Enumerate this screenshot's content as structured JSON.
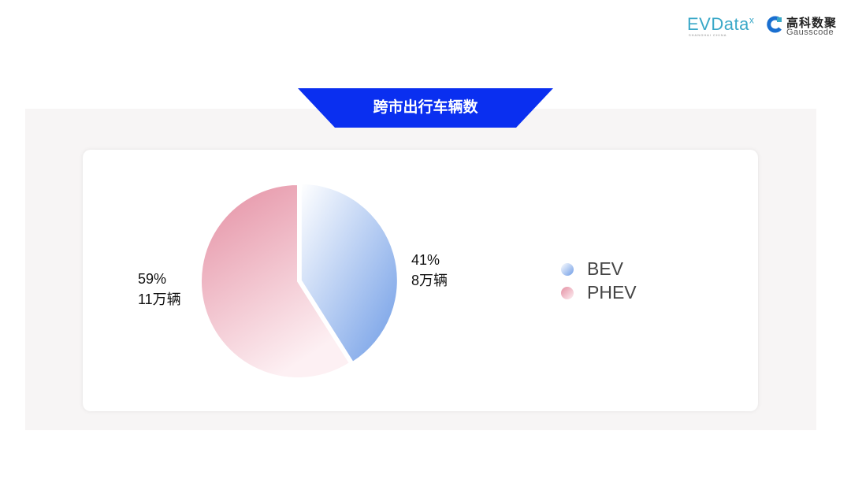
{
  "logos": {
    "evdata": "EVData",
    "evdata_sup": "x",
    "evdata_sub": "SHANGHAI CHINA",
    "gauss_cn": "高科数聚",
    "gauss_en": "Gausscode"
  },
  "chart_data": {
    "type": "pie",
    "title": "跨市出行车辆数",
    "series": [
      {
        "name": "BEV",
        "percent": 41,
        "value_label": "8万辆",
        "colors": [
          "#ffffff",
          "#6f9ce6"
        ]
      },
      {
        "name": "PHEV",
        "percent": 59,
        "value_label": "11万辆",
        "colors": [
          "#e48ea2",
          "#fdf0f3"
        ]
      }
    ],
    "legend_position": "right"
  },
  "labels": {
    "bev_pct": "41%",
    "bev_val": "8万辆",
    "phev_pct": "59%",
    "phev_val": "11万辆"
  },
  "colors": {
    "banner": "#0a2ff0",
    "panel": "#f7f5f5"
  }
}
